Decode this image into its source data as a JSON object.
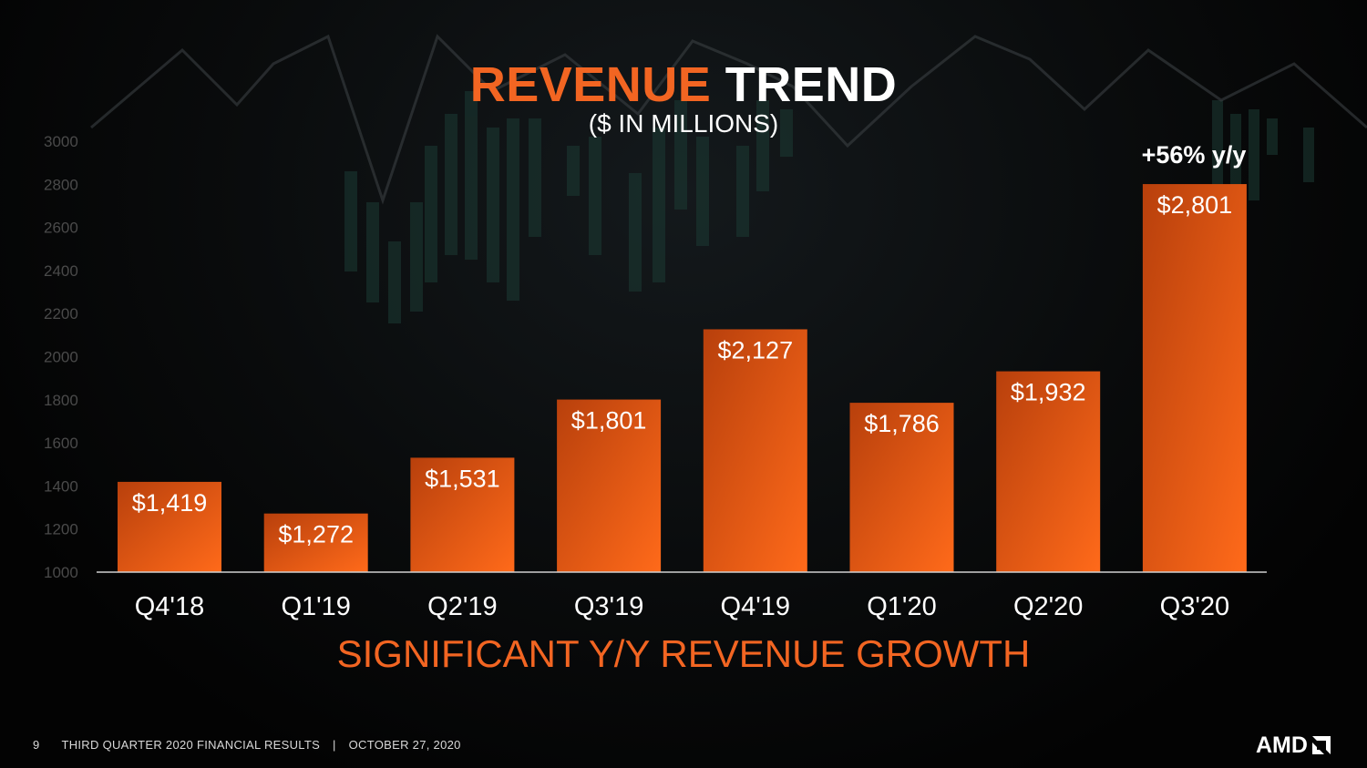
{
  "title": {
    "accent": "REVENUE",
    "rest": "TREND"
  },
  "subtitle": "($ IN MILLIONS)",
  "annotation": "+56% y/y",
  "tagline": "SIGNIFICANT Y/Y REVENUE GROWTH",
  "footer": {
    "page": "9",
    "left": "THIRD QUARTER 2020 FINANCIAL RESULTS",
    "separator": "|",
    "date": "OCTOBER 27, 2020"
  },
  "logo": {
    "text": "AMD",
    "icon": "amd-arrow-icon"
  },
  "colors": {
    "accent": "#f26522",
    "bar_top": "#c2410c",
    "bar_bottom": "#f26522",
    "background": "#050505"
  },
  "chart_data": {
    "type": "bar",
    "categories": [
      "Q4'18",
      "Q1'19",
      "Q2'19",
      "Q3'19",
      "Q4'19",
      "Q1'20",
      "Q2'20",
      "Q3'20"
    ],
    "values": [
      1419,
      1272,
      1531,
      1801,
      2127,
      1786,
      1932,
      2801
    ],
    "data_labels": [
      "$1,419",
      "$1,272",
      "$1,531",
      "$1,801",
      "$2,127",
      "$1,786",
      "$1,932",
      "$2,801"
    ],
    "yticks": [
      1000,
      1200,
      1400,
      1600,
      1800,
      2000,
      2200,
      2400,
      2600,
      2800,
      3000
    ],
    "ylim": [
      1000,
      3000
    ],
    "grid": false,
    "legend": "none"
  }
}
